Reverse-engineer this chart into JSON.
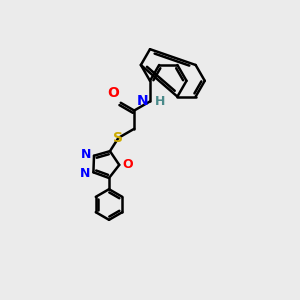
{
  "bg_color": "#ebebeb",
  "bond_color": "#000000",
  "bond_width": 1.8,
  "atom_colors": {
    "O": "#ff0000",
    "N": "#0000ff",
    "S": "#ccaa00",
    "H": "#4a8a8a",
    "C": "#000000"
  },
  "font_size": 10,
  "fig_size": [
    3.0,
    3.0
  ],
  "dpi": 100
}
